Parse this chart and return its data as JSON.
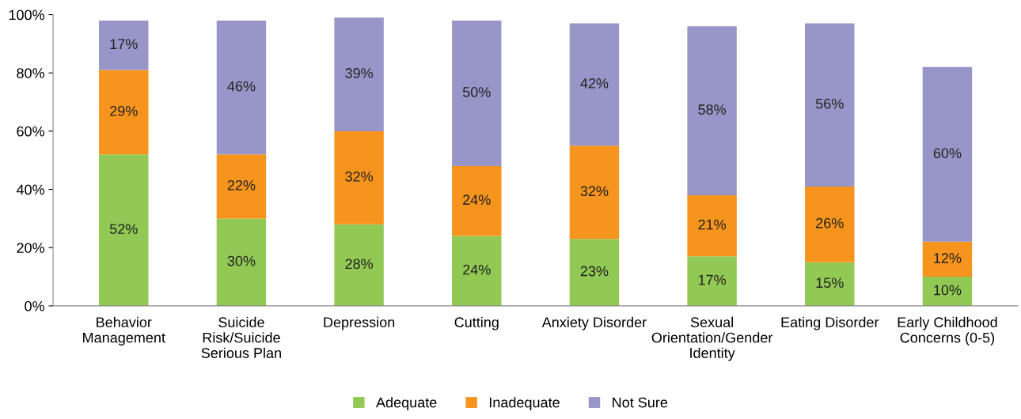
{
  "chart_data": {
    "type": "bar",
    "stacked": true,
    "categories": [
      "Behavior\nManagement",
      "Suicide\nRisk/Suicide\nSerious Plan",
      "Depression",
      "Cutting",
      "Anxiety Disorder",
      "Sexual\nOrientation/Gender\nIdentity",
      "Eating Disorder",
      "Early Childhood\nConcerns (0-5)"
    ],
    "series": [
      {
        "name": "Adequate",
        "color": "#92c954",
        "values": [
          52,
          30,
          28,
          24,
          23,
          17,
          15,
          10
        ],
        "value_labels": [
          "52%",
          "30%",
          "28%",
          "24%",
          "23%",
          "17%",
          "15%",
          "10%"
        ]
      },
      {
        "name": "Inadequate",
        "color": "#f7941d",
        "values": [
          29,
          22,
          32,
          24,
          32,
          21,
          26,
          12
        ],
        "value_labels": [
          "29%",
          "22%",
          "32%",
          "24%",
          "32%",
          "21%",
          "26%",
          "12%"
        ]
      },
      {
        "name": "Not Sure",
        "color": "#9896c8",
        "values": [
          17,
          46,
          39,
          50,
          42,
          58,
          56,
          60
        ],
        "value_labels": [
          "17%",
          "46%",
          "39%",
          "50%",
          "42%",
          "58%",
          "56%",
          "60%"
        ]
      }
    ],
    "ylim": [
      0,
      100
    ],
    "yticks": [
      {
        "value": 0,
        "label": "0%"
      },
      {
        "value": 20,
        "label": "20%"
      },
      {
        "value": 40,
        "label": "40%"
      },
      {
        "value": 60,
        "label": "60%"
      },
      {
        "value": 80,
        "label": "80%"
      },
      {
        "value": 100,
        "label": "100%"
      }
    ],
    "grid": false,
    "legend": "bottom"
  }
}
